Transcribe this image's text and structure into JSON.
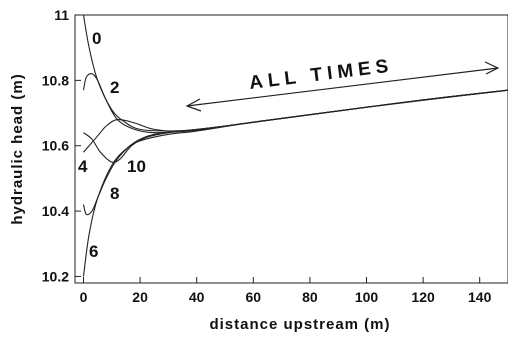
{
  "chart_data": {
    "type": "line",
    "xlabel": "distance upstream (m)",
    "ylabel": "hydraulic head (m)",
    "xlim": [
      -3,
      150
    ],
    "ylim": [
      10.18,
      11.0
    ],
    "xticks": [
      0,
      20,
      40,
      60,
      80,
      100,
      120,
      140
    ],
    "yticks": [
      10.2,
      10.4,
      10.6,
      10.8,
      11
    ],
    "ytick_labels": [
      "10.2",
      "10.4",
      "10.6",
      "10.8",
      "11"
    ],
    "grid": false,
    "annotation": "ALL TIMES",
    "series": [
      {
        "name": "0",
        "x": [
          0,
          2,
          5,
          10,
          15,
          20,
          30,
          40,
          60,
          80,
          100,
          120,
          150
        ],
        "y": [
          11.0,
          10.9,
          10.8,
          10.71,
          10.67,
          10.65,
          10.645,
          10.65,
          10.672,
          10.695,
          10.718,
          10.74,
          10.77
        ]
      },
      {
        "name": "2",
        "x": [
          0,
          1,
          3,
          5,
          8,
          12,
          18,
          25,
          35,
          50,
          80,
          120,
          150
        ],
        "y": [
          10.77,
          10.81,
          10.82,
          10.8,
          10.74,
          10.68,
          10.65,
          10.64,
          10.645,
          10.66,
          10.695,
          10.74,
          10.77
        ]
      },
      {
        "name": "4",
        "x": [
          0,
          2,
          5,
          8,
          12,
          18,
          25,
          35,
          50,
          80,
          120,
          150
        ],
        "y": [
          10.58,
          10.6,
          10.63,
          10.66,
          10.68,
          10.67,
          10.65,
          10.645,
          10.66,
          10.695,
          10.74,
          10.77
        ]
      },
      {
        "name": "6",
        "x": [
          0,
          2,
          5,
          10,
          15,
          20,
          30,
          40,
          60,
          80,
          100,
          120,
          150
        ],
        "y": [
          10.2,
          10.33,
          10.44,
          10.54,
          10.59,
          10.615,
          10.635,
          10.645,
          10.672,
          10.695,
          10.718,
          10.74,
          10.77
        ]
      },
      {
        "name": "8",
        "x": [
          0,
          1,
          3,
          5,
          8,
          12,
          18,
          25,
          35,
          50,
          80,
          120,
          150
        ],
        "y": [
          10.42,
          10.39,
          10.4,
          10.44,
          10.5,
          10.56,
          10.61,
          10.635,
          10.645,
          10.66,
          10.695,
          10.74,
          10.77
        ]
      },
      {
        "name": "10",
        "x": [
          0,
          3,
          6,
          10,
          13,
          17,
          22,
          30,
          40,
          60,
          100,
          150
        ],
        "y": [
          10.64,
          10.62,
          10.58,
          10.55,
          10.56,
          10.6,
          10.625,
          10.64,
          10.648,
          10.672,
          10.718,
          10.77
        ]
      }
    ]
  }
}
